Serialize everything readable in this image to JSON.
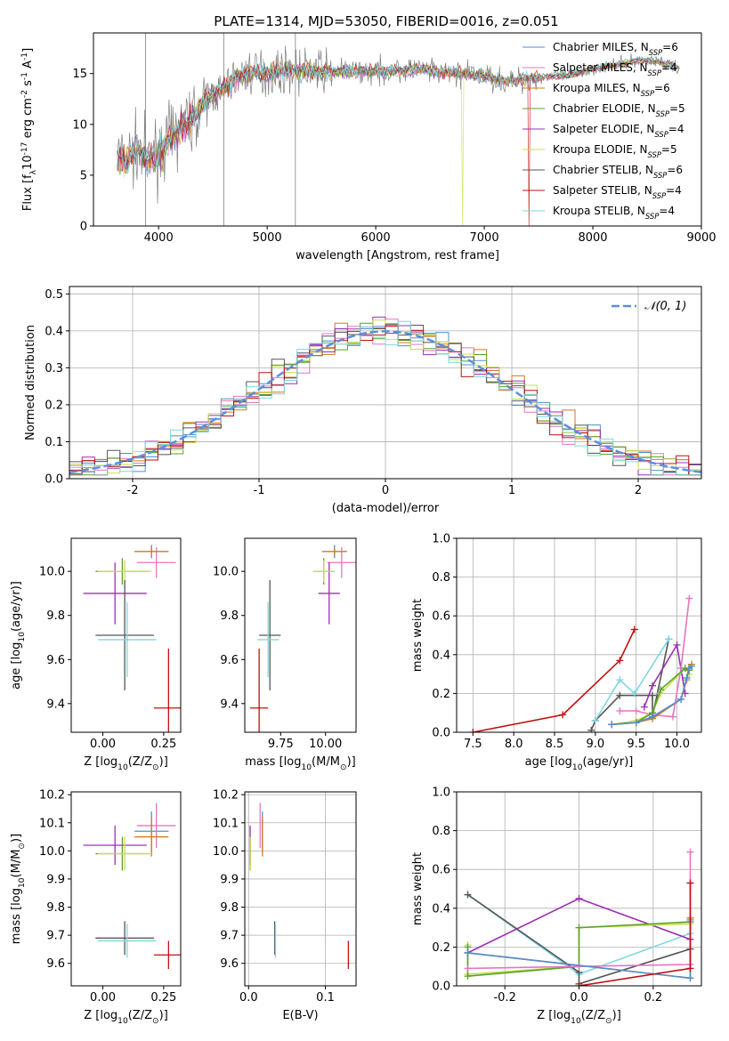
{
  "figure": {
    "title": "PLATE=1314, MJD=53050, FIBERID=0016, z=0.051"
  },
  "series_legend": [
    {
      "name": "Chabrier MILES, N$_{SSP}$=6",
      "text": "Chabrier MILES, N",
      "sub": "SSP",
      "tail": "=6",
      "color": "#4f8fd1"
    },
    {
      "name": "Salpeter MILES, N$_{SSP}$=4",
      "text": "Salpeter MILES, N",
      "sub": "SSP",
      "tail": "=4",
      "color": "#e377c2"
    },
    {
      "name": "Kroupa MILES, N$_{SSP}$=6",
      "text": "Kroupa MILES, N",
      "sub": "SSP",
      "tail": "=6",
      "color": "#d17a1e"
    },
    {
      "name": "Chabrier ELODIE, N$_{SSP}$=5",
      "text": "Chabrier ELODIE, N",
      "sub": "SSP",
      "tail": "=5",
      "color": "#5aa02c"
    },
    {
      "name": "Salpeter ELODIE, N$_{SSP}$=4",
      "text": "Salpeter ELODIE, N",
      "sub": "SSP",
      "tail": "=4",
      "color": "#9b30b0"
    },
    {
      "name": "Kroupa ELODIE, N$_{SSP}$=5",
      "text": "Kroupa ELODIE, N",
      "sub": "SSP",
      "tail": "=5",
      "color": "#c8e04a"
    },
    {
      "name": "Chabrier STELIB, N$_{SSP}$=6",
      "text": "Chabrier STELIB, N",
      "sub": "SSP",
      "tail": "=6",
      "color": "#555555"
    },
    {
      "name": "Salpeter STELIB, N$_{SSP}$=4",
      "text": "Salpeter STELIB, N",
      "sub": "SSP",
      "tail": "=4",
      "color": "#c01010"
    },
    {
      "name": "Kroupa STELIB, N$_{SSP}$=4",
      "text": "Kroupa STELIB, N",
      "sub": "SSP",
      "tail": "=4",
      "color": "#7fd6e0"
    }
  ],
  "chart_data": [
    {
      "id": "spectrum",
      "type": "line",
      "xlabel": "wavelength [Angstrom, rest frame]",
      "ylabel": "Flux [f$_\\lambda$10$^{-17}$ erg cm$^{-2}$ s$^{-1}$ A$^{-1}$]",
      "xlim": [
        3400,
        9000
      ],
      "ylim": [
        0,
        19
      ],
      "xticks": [
        4000,
        5000,
        6000,
        7000,
        8000,
        9000
      ],
      "yticks": [
        0,
        5,
        10,
        15
      ],
      "data_color": "#808080",
      "continuum": {
        "x": [
          3620,
          3700,
          3800,
          3900,
          4000,
          4100,
          4200,
          4300,
          4400,
          4500,
          4600,
          4700,
          4800,
          4900,
          5000,
          5200,
          5400,
          5600,
          5800,
          6000,
          6200,
          6400,
          6600,
          6800,
          7000,
          7200,
          7400,
          7600,
          7800,
          8000,
          8200,
          8400,
          8600,
          8800
        ],
        "y": [
          7,
          6.5,
          7.5,
          6.5,
          7,
          8.5,
          9.5,
          10.5,
          12,
          13,
          13.5,
          14.5,
          15,
          15.2,
          15,
          15.3,
          15.3,
          15.2,
          15.2,
          15.2,
          15.3,
          15.4,
          15.1,
          15,
          14.8,
          14.2,
          14.5,
          14.7,
          14.8,
          15.5,
          15.8,
          16.3,
          16.2,
          15.5
        ]
      },
      "dropouts": [
        {
          "x": 6800,
          "series": "Kroupa ELODIE, N$_{SSP}$=5"
        },
        {
          "x": 7410,
          "series": "Salpeter STELIB, N$_{SSP}$=4"
        }
      ]
    },
    {
      "id": "residuals",
      "type": "histogram",
      "xlabel": "(data-model)/error",
      "ylabel": "Normed distribution",
      "xlim": [
        -2.5,
        2.5
      ],
      "ylim": [
        0,
        0.52
      ],
      "xticks": [
        -2,
        -1,
        0,
        1,
        2
      ],
      "yticks": [
        0.0,
        0.1,
        0.2,
        0.3,
        0.4,
        0.5
      ],
      "grid": true,
      "legend": {
        "label": "$\\mathcal{N}(0,1)$",
        "display": "𝒩(0, 1)",
        "color": "#5b8fdc",
        "placement": "upper right"
      },
      "bin_width": 0.1
    },
    {
      "id": "age_vs_Z",
      "type": "errorbar",
      "xlabel": "Z [log$_{10}$(Z/Z$_\\odot$)]",
      "ylabel": "age  [log$_{10}$(age/yr)]",
      "xlim": [
        -0.13,
        0.32
      ],
      "ylim": [
        9.27,
        10.15
      ],
      "xticks": [
        0.0,
        0.25
      ],
      "yticks": [
        9.4,
        9.6,
        9.8,
        10.0
      ],
      "points": [
        {
          "series": "Chabrier MILES, N$_{SSP}$=6",
          "x": 0.2,
          "xerr": 0.07,
          "y": 10.09,
          "yerr": 0.03
        },
        {
          "series": "Salpeter MILES, N$_{SSP}$=4",
          "x": 0.22,
          "xerr": 0.08,
          "y": 10.04,
          "yerr": 0.07
        },
        {
          "series": "Kroupa MILES, N$_{SSP}$=6",
          "x": 0.2,
          "xerr": 0.07,
          "y": 10.09,
          "yerr": 0.02
        },
        {
          "series": "Chabrier ELODIE, N$_{SSP}$=5",
          "x": 0.08,
          "xerr": 0.11,
          "y": 10.0,
          "yerr": 0.06
        },
        {
          "series": "Salpeter ELODIE, N$_{SSP}$=4",
          "x": 0.05,
          "xerr": 0.13,
          "y": 9.9,
          "yerr": 0.14
        },
        {
          "series": "Kroupa ELODIE, N$_{SSP}$=5",
          "x": 0.09,
          "xerr": 0.11,
          "y": 10.0,
          "yerr": 0.05
        },
        {
          "series": "Chabrier STELIB, N$_{SSP}$=6",
          "x": 0.09,
          "xerr": 0.12,
          "y": 9.71,
          "yerr": 0.25
        },
        {
          "series": "Salpeter STELIB, N$_{SSP}$=4",
          "x": 0.27,
          "xerr": 0.06,
          "y": 9.38,
          "yerr": 0.27
        },
        {
          "series": "Kroupa STELIB, N$_{SSP}$=4",
          "x": 0.1,
          "xerr": 0.12,
          "y": 9.69,
          "yerr": 0.17
        }
      ]
    },
    {
      "id": "age_vs_mass",
      "type": "errorbar",
      "xlabel": "mass [log$_{10}$(M/M$_\\odot$)]",
      "xlim": [
        9.55,
        10.17
      ],
      "ylim": [
        9.27,
        10.15
      ],
      "xticks": [
        9.75,
        10.0
      ],
      "yticks": [
        9.4,
        9.6,
        9.8,
        10.0
      ],
      "points": [
        {
          "series": "Chabrier MILES, N$_{SSP}$=6",
          "x": 10.05,
          "xerr": 0.07,
          "y": 10.09,
          "yerr": 0.03
        },
        {
          "series": "Salpeter MILES, N$_{SSP}$=4",
          "x": 10.09,
          "xerr": 0.08,
          "y": 10.04,
          "yerr": 0.07
        },
        {
          "series": "Kroupa MILES, N$_{SSP}$=6",
          "x": 10.05,
          "xerr": 0.07,
          "y": 10.09,
          "yerr": 0.02
        },
        {
          "series": "Chabrier ELODIE, N$_{SSP}$=5",
          "x": 9.99,
          "xerr": 0.06,
          "y": 10.0,
          "yerr": 0.06
        },
        {
          "series": "Salpeter ELODIE, N$_{SSP}$=4",
          "x": 10.02,
          "xerr": 0.06,
          "y": 9.9,
          "yerr": 0.14
        },
        {
          "series": "Kroupa ELODIE, N$_{SSP}$=5",
          "x": 9.99,
          "xerr": 0.06,
          "y": 10.0,
          "yerr": 0.05
        },
        {
          "series": "Chabrier STELIB, N$_{SSP}$=6",
          "x": 9.69,
          "xerr": 0.06,
          "y": 9.71,
          "yerr": 0.25
        },
        {
          "series": "Salpeter STELIB, N$_{SSP}$=4",
          "x": 9.63,
          "xerr": 0.05,
          "y": 9.38,
          "yerr": 0.27
        },
        {
          "series": "Kroupa STELIB, N$_{SSP}$=4",
          "x": 9.68,
          "xerr": 0.06,
          "y": 9.69,
          "yerr": 0.17
        }
      ]
    },
    {
      "id": "massweight_vs_age",
      "type": "line",
      "xlabel": "age  [log$_{10}$(age/yr)]",
      "ylabel": "mass weight",
      "xlim": [
        7.3,
        10.3
      ],
      "ylim": [
        0.0,
        1.0
      ],
      "xticks": [
        7.5,
        8.0,
        8.5,
        9.0,
        9.5,
        10.0
      ],
      "yticks": [
        0.0,
        0.2,
        0.4,
        0.6,
        0.8,
        1.0
      ],
      "grid": true,
      "series": [
        {
          "name": "Salpeter STELIB, N$_{SSP}$=4",
          "x": [
            7.5,
            8.6,
            9.3,
            9.48
          ],
          "y": [
            0.0,
            0.09,
            0.37,
            0.53
          ]
        },
        {
          "name": "Chabrier STELIB, N$_{SSP}$=6",
          "x": [
            8.95,
            9.0,
            9.3,
            9.7,
            9.7,
            9.9
          ],
          "y": [
            0.01,
            0.06,
            0.19,
            0.19,
            0.08,
            0.48
          ]
        },
        {
          "name": "Kroupa STELIB, N$_{SSP}$=4",
          "x": [
            9.0,
            9.3,
            9.48,
            9.9
          ],
          "y": [
            0.06,
            0.27,
            0.2,
            0.48
          ]
        },
        {
          "name": "Salpeter ELODIE, N$_{SSP}$=4",
          "x": [
            9.6,
            9.7,
            10.0,
            10.1
          ],
          "y": [
            0.13,
            0.24,
            0.45,
            0.2
          ]
        },
        {
          "name": "Salpeter MILES, N$_{SSP}$=4",
          "x": [
            9.3,
            9.5,
            9.7,
            9.95,
            10.05,
            10.15
          ],
          "y": [
            0.11,
            0.11,
            0.09,
            0.08,
            0.33,
            0.69
          ]
        },
        {
          "name": "Kroupa ELODIE, N$_{SSP}$=5",
          "x": [
            9.2,
            9.5,
            9.7,
            9.8,
            10.1,
            10.15
          ],
          "y": [
            0.04,
            0.06,
            0.1,
            0.2,
            0.33,
            0.3
          ]
        },
        {
          "name": "Chabrier ELODIE, N$_{SSP}$=5",
          "x": [
            9.2,
            9.5,
            9.7,
            9.8,
            10.1,
            10.15
          ],
          "y": [
            0.04,
            0.05,
            0.1,
            0.22,
            0.33,
            0.32
          ]
        },
        {
          "name": "Kroupa MILES, N$_{SSP}$=6",
          "x": [
            9.2,
            9.5,
            9.7,
            10.05,
            10.12,
            10.15,
            10.18
          ],
          "y": [
            0.04,
            0.05,
            0.07,
            0.17,
            0.27,
            0.33,
            0.35
          ]
        },
        {
          "name": "Chabrier MILES, N$_{SSP}$=6",
          "x": [
            9.2,
            9.5,
            9.7,
            10.05,
            10.12,
            10.15,
            10.18
          ],
          "y": [
            0.04,
            0.05,
            0.08,
            0.17,
            0.28,
            0.33,
            0.34
          ]
        }
      ]
    },
    {
      "id": "mass_vs_Z",
      "type": "errorbar",
      "xlabel": "Z [log$_{10}$(Z/Z$_\\odot$)]",
      "ylabel": "mass [log$_{10}$(M/M$_\\odot$)]",
      "xlim": [
        -0.13,
        0.32
      ],
      "ylim": [
        9.52,
        10.21
      ],
      "xticks": [
        0.0,
        0.25
      ],
      "yticks": [
        9.6,
        9.7,
        9.8,
        9.9,
        10.0,
        10.1,
        10.2
      ],
      "points": [
        {
          "series": "Chabrier MILES, N$_{SSP}$=6",
          "x": 0.2,
          "xerr": 0.07,
          "y": 10.07,
          "yerr": 0.07
        },
        {
          "series": "Salpeter MILES, N$_{SSP}$=4",
          "x": 0.22,
          "xerr": 0.08,
          "y": 10.09,
          "yerr": 0.08
        },
        {
          "series": "Kroupa MILES, N$_{SSP}$=6",
          "x": 0.2,
          "xerr": 0.07,
          "y": 10.05,
          "yerr": 0.07
        },
        {
          "series": "Chabrier ELODIE, N$_{SSP}$=5",
          "x": 0.08,
          "xerr": 0.11,
          "y": 9.99,
          "yerr": 0.06
        },
        {
          "series": "Salpeter ELODIE, N$_{SSP}$=4",
          "x": 0.05,
          "xerr": 0.13,
          "y": 10.02,
          "yerr": 0.07
        },
        {
          "series": "Kroupa ELODIE, N$_{SSP}$=5",
          "x": 0.09,
          "xerr": 0.11,
          "y": 9.99,
          "yerr": 0.06
        },
        {
          "series": "Chabrier STELIB, N$_{SSP}$=6",
          "x": 0.09,
          "xerr": 0.12,
          "y": 9.69,
          "yerr": 0.06
        },
        {
          "series": "Salpeter STELIB, N$_{SSP}$=4",
          "x": 0.27,
          "xerr": 0.06,
          "y": 9.63,
          "yerr": 0.05
        },
        {
          "series": "Kroupa STELIB, N$_{SSP}$=4",
          "x": 0.1,
          "xerr": 0.12,
          "y": 9.68,
          "yerr": 0.06
        }
      ]
    },
    {
      "id": "mass_vs_EBV",
      "type": "errorbar",
      "xlabel": "E(B-V)",
      "xlim": [
        -0.005,
        0.14
      ],
      "ylim": [
        9.52,
        10.21
      ],
      "xticks": [
        0.0,
        0.1
      ],
      "yticks": [
        9.6,
        9.7,
        9.8,
        9.9,
        10.0,
        10.1,
        10.2
      ],
      "grid": true,
      "points": [
        {
          "series": "Chabrier MILES, N$_{SSP}$=6",
          "x": 0.018,
          "y": 10.07,
          "yerr": 0.07
        },
        {
          "series": "Salpeter MILES, N$_{SSP}$=4",
          "x": 0.015,
          "y": 10.09,
          "yerr": 0.08
        },
        {
          "series": "Kroupa MILES, N$_{SSP}$=6",
          "x": 0.018,
          "y": 10.05,
          "yerr": 0.07
        },
        {
          "series": "Chabrier ELODIE, N$_{SSP}$=5",
          "x": 0.002,
          "y": 9.99,
          "yerr": 0.06
        },
        {
          "series": "Salpeter ELODIE, N$_{SSP}$=4",
          "x": 0.002,
          "y": 10.02,
          "yerr": 0.07
        },
        {
          "series": "Kroupa ELODIE, N$_{SSP}$=5",
          "x": 0.002,
          "y": 9.99,
          "yerr": 0.06
        },
        {
          "series": "Chabrier STELIB, N$_{SSP}$=6",
          "x": 0.034,
          "y": 9.69,
          "yerr": 0.06
        },
        {
          "series": "Salpeter STELIB, N$_{SSP}$=4",
          "x": 0.13,
          "y": 9.63,
          "yerr": 0.05
        },
        {
          "series": "Kroupa STELIB, N$_{SSP}$=4",
          "x": 0.035,
          "y": 9.68,
          "yerr": 0.06
        }
      ]
    },
    {
      "id": "massweight_vs_Z",
      "type": "line",
      "xlabel": "Z [log$_{10}$(Z/Z$_\\odot$)]",
      "ylabel": "mass weight",
      "xlim": [
        -0.33,
        0.33
      ],
      "ylim": [
        0.0,
        1.0
      ],
      "xticks": [
        -0.2,
        0.0,
        0.2
      ],
      "yticks": [
        0.0,
        0.2,
        0.4,
        0.6,
        0.8,
        1.0
      ],
      "grid": true,
      "series": [
        {
          "name": "Kroupa STELIB, N$_{SSP}$=4",
          "x": [
            -0.3,
            0.0,
            0.3
          ],
          "y": [
            0.47,
            0.06,
            0.27
          ]
        },
        {
          "name": "Chabrier STELIB, N$_{SSP}$=6",
          "x": [
            -0.3,
            0.0,
            0.0,
            0.3
          ],
          "y": [
            0.47,
            0.07,
            0.01,
            0.19
          ]
        },
        {
          "name": "Salpeter ELODIE, N$_{SSP}$=4",
          "x": [
            -0.3,
            0.0,
            0.3
          ],
          "y": [
            0.17,
            0.45,
            0.24
          ]
        },
        {
          "name": "Kroupa ELODIE, N$_{SSP}$=5",
          "x": [
            -0.3,
            -0.3,
            0.0,
            0.0,
            0.3
          ],
          "y": [
            0.21,
            0.06,
            0.1,
            0.3,
            0.32
          ]
        },
        {
          "name": "Chabrier ELODIE, N$_{SSP}$=5",
          "x": [
            -0.3,
            -0.3,
            0.0,
            0.0,
            0.3
          ],
          "y": [
            0.2,
            0.05,
            0.1,
            0.3,
            0.33
          ]
        },
        {
          "name": "Salpeter MILES, N$_{SSP}$=4",
          "x": [
            -0.3,
            0.0,
            0.3,
            0.3
          ],
          "y": [
            0.09,
            0.1,
            0.11,
            0.69
          ]
        },
        {
          "name": "Kroupa MILES, N$_{SSP}$=6",
          "x": [
            -0.3,
            0.3,
            0.3
          ],
          "y": [
            0.17,
            0.04,
            0.35
          ]
        },
        {
          "name": "Chabrier MILES, N$_{SSP}$=6",
          "x": [
            -0.3,
            0.3,
            0.3
          ],
          "y": [
            0.17,
            0.04,
            0.34
          ]
        },
        {
          "name": "Salpeter STELIB, N$_{SSP}$=4",
          "x": [
            0.0,
            0.3,
            0.3
          ],
          "y": [
            0.0,
            0.09,
            0.53
          ]
        }
      ]
    }
  ]
}
